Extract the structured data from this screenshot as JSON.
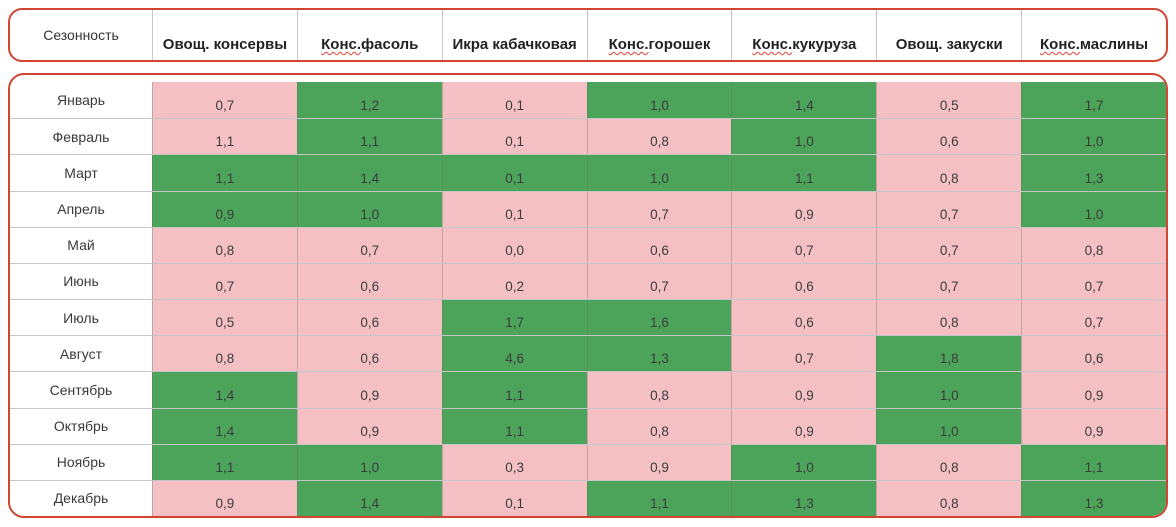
{
  "colors": {
    "green": "#4ca45a",
    "pink": "#f4c0c3",
    "border_red": "#cf4632",
    "squiggle_red": "#e8402e",
    "gridline_gray": "#808080",
    "header_text": "#222222",
    "cell_text": "#3c3c3c"
  },
  "header": {
    "season_label": "Сезонность",
    "products": [
      {
        "squiggle": "",
        "rest": "Овощ. консервы"
      },
      {
        "squiggle": "Конс.",
        "rest": " фасоль"
      },
      {
        "squiggle": "",
        "rest": "Икра кабачковая"
      },
      {
        "squiggle": "Конс.",
        "rest": " горошек"
      },
      {
        "squiggle": "Конс.",
        "rest": " кукуруза"
      },
      {
        "squiggle": "",
        "rest": "Овощ. закуски"
      },
      {
        "squiggle": "Конс.",
        "rest": " маслины"
      }
    ]
  },
  "chart_data": {
    "type": "heatmap",
    "title": "Сезонность",
    "decimal_separator": ",",
    "columns": [
      "Овощ. консервы",
      "Конс. фасоль",
      "Икра кабачковая",
      "Конс. горошек",
      "Конс. кукуруза",
      "Овощ. закуски",
      "Конс. маслины"
    ],
    "rows": [
      "Январь",
      "Февраль",
      "Март",
      "Апрель",
      "Май",
      "Июнь",
      "Июль",
      "Август",
      "Сентябрь",
      "Октябрь",
      "Ноябрь",
      "Декабрь"
    ],
    "values": [
      [
        0.7,
        1.2,
        0.1,
        1.0,
        1.4,
        0.5,
        1.7
      ],
      [
        1.1,
        1.1,
        0.1,
        0.8,
        1.0,
        0.6,
        1.0
      ],
      [
        1.1,
        1.4,
        0.1,
        1.0,
        1.1,
        0.8,
        1.3
      ],
      [
        0.9,
        1.0,
        0.1,
        0.7,
        0.9,
        0.7,
        1.0
      ],
      [
        0.8,
        0.7,
        0.0,
        0.6,
        0.7,
        0.7,
        0.8
      ],
      [
        0.7,
        0.6,
        0.2,
        0.7,
        0.6,
        0.7,
        0.7
      ],
      [
        0.5,
        0.6,
        1.7,
        1.6,
        0.6,
        0.8,
        0.7
      ],
      [
        0.8,
        0.6,
        4.6,
        1.3,
        0.7,
        1.8,
        0.6
      ],
      [
        1.4,
        0.9,
        1.1,
        0.8,
        0.9,
        1.0,
        0.9
      ],
      [
        1.4,
        0.9,
        1.1,
        0.8,
        0.9,
        1.0,
        0.9
      ],
      [
        1.1,
        1.0,
        0.3,
        0.9,
        1.0,
        0.8,
        1.1
      ],
      [
        0.9,
        1.4,
        0.1,
        1.1,
        1.3,
        0.8,
        1.3
      ]
    ],
    "cell_colors": [
      [
        "pink",
        "green",
        "pink",
        "green",
        "green",
        "pink",
        "green"
      ],
      [
        "pink",
        "green",
        "pink",
        "pink",
        "green",
        "pink",
        "green"
      ],
      [
        "green",
        "green",
        "green",
        "green",
        "green",
        "pink",
        "green"
      ],
      [
        "green",
        "green",
        "pink",
        "pink",
        "pink",
        "pink",
        "green"
      ],
      [
        "pink",
        "pink",
        "pink",
        "pink",
        "pink",
        "pink",
        "pink"
      ],
      [
        "pink",
        "pink",
        "pink",
        "pink",
        "pink",
        "pink",
        "pink"
      ],
      [
        "pink",
        "pink",
        "green",
        "green",
        "pink",
        "pink",
        "pink"
      ],
      [
        "pink",
        "pink",
        "green",
        "green",
        "pink",
        "green",
        "pink"
      ],
      [
        "green",
        "pink",
        "green",
        "pink",
        "pink",
        "green",
        "pink"
      ],
      [
        "green",
        "pink",
        "green",
        "pink",
        "pink",
        "green",
        "pink"
      ],
      [
        "green",
        "green",
        "pink",
        "pink",
        "green",
        "pink",
        "green"
      ],
      [
        "pink",
        "green",
        "pink",
        "green",
        "green",
        "pink",
        "green"
      ]
    ],
    "legend": {
      "green_meaning": "green",
      "pink_meaning": "pink",
      "position": "none"
    }
  }
}
